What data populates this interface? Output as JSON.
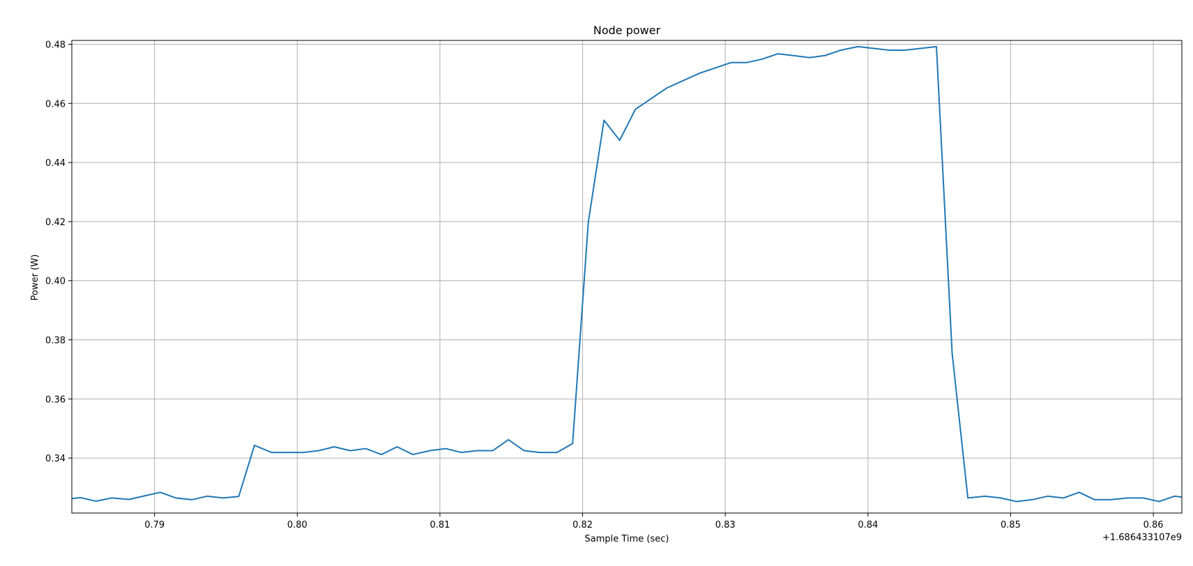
{
  "chart_data": {
    "type": "line",
    "title": "Node power",
    "xlabel": "Sample Time (sec)",
    "ylabel": "Power (W)",
    "x_offset_label": "+1.686433107e9",
    "xlim": [
      0.7842,
      0.862
    ],
    "ylim": [
      0.3214,
      0.4813
    ],
    "xticks": [
      0.79,
      0.8,
      0.81,
      0.82,
      0.83,
      0.84,
      0.85,
      0.86
    ],
    "xtick_labels": [
      "0.79",
      "0.80",
      "0.81",
      "0.82",
      "0.83",
      "0.84",
      "0.85",
      "0.86"
    ],
    "yticks": [
      0.34,
      0.36,
      0.38,
      0.4,
      0.42,
      0.44,
      0.46,
      0.48
    ],
    "ytick_labels": [
      "0.34",
      "0.36",
      "0.38",
      "0.40",
      "0.42",
      "0.44",
      "0.46",
      "0.48"
    ],
    "grid": true,
    "color": "#1f77b4",
    "series": [
      {
        "x": [
          0.7842,
          0.7848,
          0.7859,
          0.787,
          0.7882,
          0.7893,
          0.7904,
          0.7915,
          0.7926,
          0.7937,
          0.7948,
          0.7959,
          0.797,
          0.7982,
          0.7993,
          0.8004,
          0.8015,
          0.8026,
          0.8037,
          0.8048,
          0.8059,
          0.807,
          0.8081,
          0.8093,
          0.8104,
          0.8115,
          0.8126,
          0.8137,
          0.8148,
          0.8159,
          0.817,
          0.8182,
          0.8193,
          0.8204,
          0.8215,
          0.8226,
          0.8237,
          0.8259,
          0.8282,
          0.8304,
          0.8315,
          0.8326,
          0.8337,
          0.8359,
          0.837,
          0.8381,
          0.8393,
          0.8415,
          0.8426,
          0.8448,
          0.8459,
          0.847,
          0.8482,
          0.8493,
          0.8504,
          0.8515,
          0.8526,
          0.8537,
          0.8548,
          0.8559,
          0.857,
          0.8582,
          0.8593,
          0.8604,
          0.8615,
          0.862
        ],
        "y": [
          0.3263,
          0.3266,
          0.3254,
          0.3265,
          0.326,
          0.3272,
          0.3284,
          0.3265,
          0.3259,
          0.3271,
          0.3265,
          0.327,
          0.3443,
          0.3419,
          0.3419,
          0.3419,
          0.3425,
          0.3438,
          0.3425,
          0.3432,
          0.3412,
          0.3438,
          0.3412,
          0.3425,
          0.3432,
          0.3419,
          0.3425,
          0.3425,
          0.3462,
          0.3425,
          0.3419,
          0.3419,
          0.3449,
          0.4198,
          0.4543,
          0.4475,
          0.458,
          0.4652,
          0.4702,
          0.4738,
          0.4738,
          0.475,
          0.4768,
          0.4755,
          0.4762,
          0.478,
          0.4792,
          0.478,
          0.478,
          0.4792,
          0.3755,
          0.3265,
          0.3271,
          0.3265,
          0.3253,
          0.3259,
          0.3271,
          0.3265,
          0.3284,
          0.3259,
          0.3259,
          0.3265,
          0.3265,
          0.3253,
          0.3271,
          0.3268
        ]
      }
    ]
  }
}
